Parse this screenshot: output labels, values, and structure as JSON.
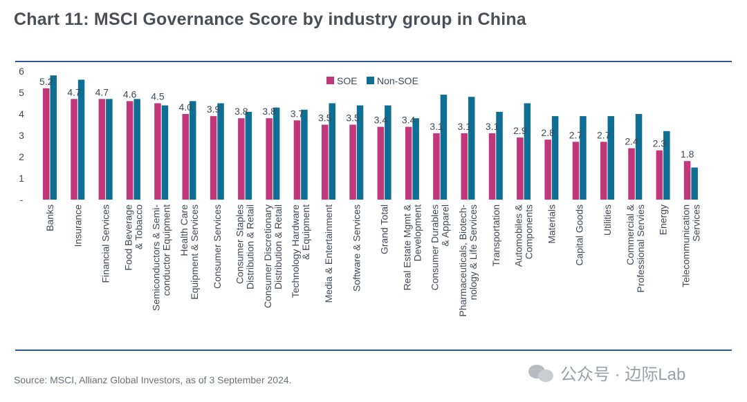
{
  "title": "Chart 11: MSCI Governance Score by industry group in China",
  "source": "Source: MSCI, Allianz Global Investors, as of 3 September 2024.",
  "watermark": "公众号 · 边际Lab",
  "colors": {
    "soe": "#c1377a",
    "non_soe": "#0e6e93",
    "rule": "#2c5596",
    "axis_text": "#3f4a55"
  },
  "chart_data": {
    "type": "bar",
    "title": "Chart 11: MSCI Governance Score by industry group in China",
    "xlabel": "",
    "ylabel": "",
    "ylim": [
      0,
      6
    ],
    "yticks": [
      "-",
      "1",
      "2",
      "3",
      "4",
      "5",
      "6"
    ],
    "grid": false,
    "legend_position": "top-center",
    "categories": [
      [
        "Banks"
      ],
      [
        "Insurance"
      ],
      [
        "Financial Services"
      ],
      [
        "Food Beverage",
        "& Tobacco"
      ],
      [
        "Semiconductors & Semi-",
        "conductor Equipment"
      ],
      [
        "Health Care",
        "Equipment & Services"
      ],
      [
        "Consumer Services"
      ],
      [
        "Consumer Staples",
        "Distribution & Retail"
      ],
      [
        "Consumer Discretionary",
        "Distribution & Retail"
      ],
      [
        "Technology Hardware",
        "& Equipment"
      ],
      [
        "Media & Entertainment"
      ],
      [
        "Software & Services"
      ],
      [
        "Grand Total"
      ],
      [
        "Real Estate Mgmt &",
        "Development"
      ],
      [
        "Consumer Durables",
        "& Apparel"
      ],
      [
        "Pharmaceuticals, Biotech-",
        "nology & Life Services"
      ],
      [
        "Transportation"
      ],
      [
        "Automobiles &",
        "Components"
      ],
      [
        "Materials"
      ],
      [
        "Capital Goods"
      ],
      [
        "Utilities"
      ],
      [
        "Commercial &",
        "Professional Servies"
      ],
      [
        "Energy"
      ],
      [
        "Telecommunication",
        "Services"
      ]
    ],
    "series": [
      {
        "name": "SOE",
        "values": [
          5.2,
          4.7,
          4.7,
          4.6,
          4.5,
          4.0,
          3.9,
          3.8,
          3.8,
          3.7,
          3.5,
          3.5,
          3.4,
          3.4,
          3.1,
          3.1,
          3.1,
          2.9,
          2.8,
          2.7,
          2.7,
          2.4,
          2.3,
          1.8
        ],
        "labels": [
          "5.2",
          "4.7",
          "4.7",
          "4.6",
          "4.5",
          "4.0",
          "3.9",
          "3.8",
          "3.8",
          "3.7",
          "3.5",
          "3.5",
          "3.4",
          "3.4",
          "3.1",
          "3.1",
          "3.1",
          "2.9",
          "2.8",
          "2.7",
          "2.7",
          "2.4",
          "2.3",
          "1.8"
        ]
      },
      {
        "name": "Non-SOE",
        "values": [
          5.8,
          5.6,
          4.7,
          4.7,
          4.4,
          4.6,
          4.5,
          4.1,
          4.3,
          4.2,
          4.5,
          4.4,
          4.4,
          3.8,
          4.9,
          4.8,
          4.1,
          4.5,
          3.9,
          3.9,
          3.9,
          4.0,
          3.2,
          1.5
        ]
      }
    ]
  }
}
